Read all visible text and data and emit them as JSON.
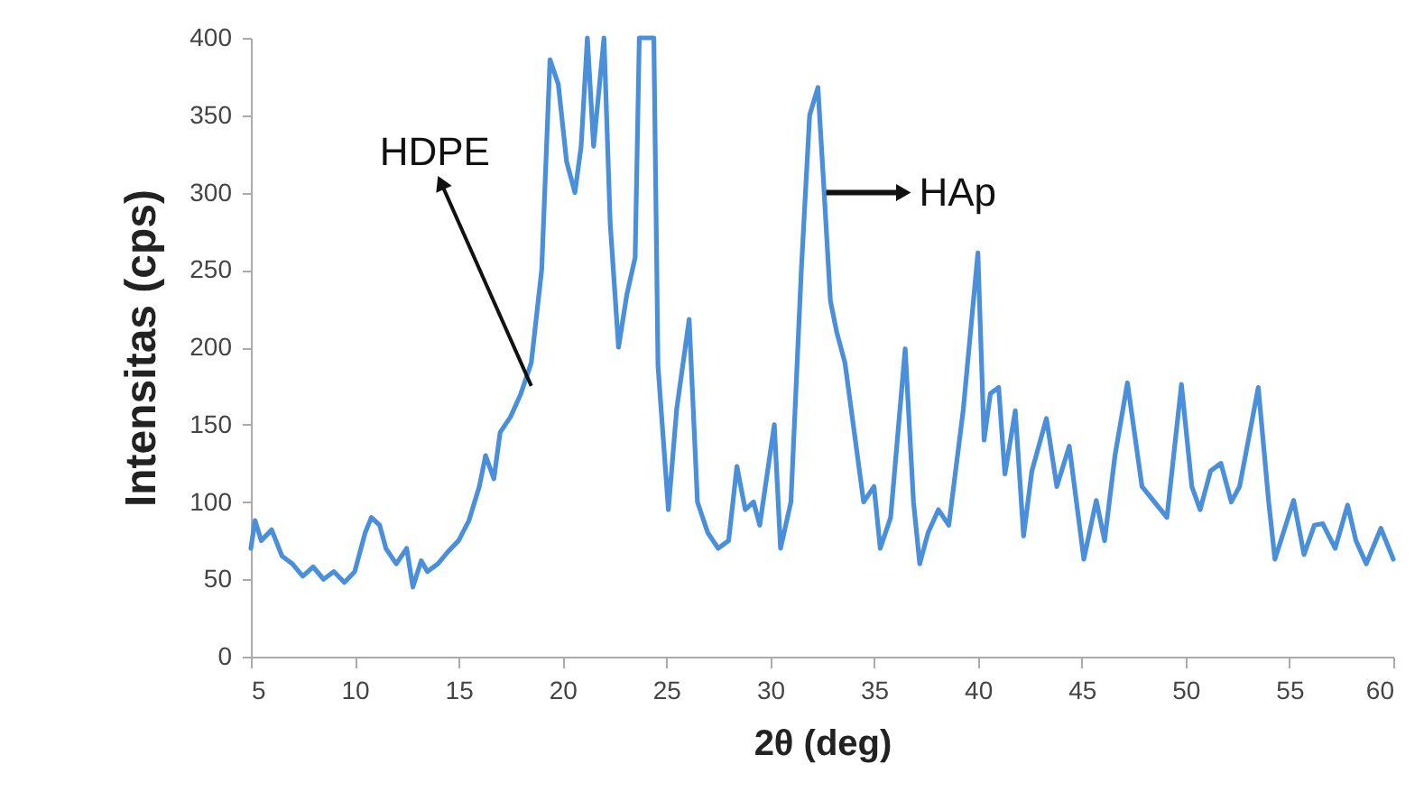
{
  "chart_data": {
    "type": "line",
    "xlabel": "2θ (deg)",
    "ylabel": "Intensitas (cps)",
    "x": [
      5,
      5.2,
      5.5,
      6,
      6.5,
      7,
      7.5,
      8,
      8.5,
      9,
      9.5,
      10,
      10.5,
      10.8,
      11.2,
      11.5,
      12,
      12.5,
      12.8,
      13.2,
      13.5,
      14,
      14.5,
      15,
      15.5,
      16,
      16.3,
      16.7,
      17,
      17.5,
      18,
      18.5,
      19,
      19.4,
      19.8,
      20.2,
      20.6,
      20.9,
      21.2,
      21.5,
      22,
      22.3,
      22.7,
      23.1,
      23.5,
      23.7,
      24.4,
      24.6,
      25.1,
      25.5,
      26.1,
      26.5,
      27,
      27.5,
      28,
      28.4,
      28.8,
      29.2,
      29.5,
      30.2,
      30.5,
      31,
      31.5,
      31.9,
      32.3,
      32.6,
      32.9,
      33.2,
      33.6,
      34,
      34.5,
      35,
      35.3,
      35.8,
      36.5,
      36.9,
      37.2,
      37.6,
      38.1,
      38.6,
      39.3,
      40,
      40.3,
      40.6,
      41,
      41.3,
      41.8,
      42.2,
      42.6,
      43.3,
      43.8,
      44.4,
      45.1,
      45.7,
      46.1,
      46.6,
      47.2,
      47.9,
      48.5,
      49.1,
      49.8,
      50.3,
      50.7,
      51.2,
      51.7,
      52.2,
      52.6,
      53.5,
      54,
      54.3,
      55.2,
      55.7,
      56.2,
      56.6,
      57.2,
      57.8,
      58.2,
      58.7,
      59.4,
      60
    ],
    "series": [
      {
        "color": "#4a8fdc",
        "values": [
          70,
          88,
          75,
          82,
          65,
          60,
          52,
          58,
          50,
          55,
          48,
          55,
          80,
          90,
          85,
          70,
          60,
          70,
          45,
          62,
          55,
          60,
          68,
          75,
          88,
          110,
          130,
          115,
          145,
          155,
          170,
          190,
          250,
          386,
          370,
          320,
          300,
          330,
          400,
          330,
          400,
          280,
          200,
          234,
          258,
          400,
          400,
          188,
          95,
          160,
          218,
          100,
          80,
          70,
          75,
          123,
          95,
          100,
          85,
          150,
          70,
          100,
          250,
          350,
          368,
          300,
          230,
          210,
          190,
          150,
          100,
          110,
          70,
          90,
          199,
          100,
          60,
          80,
          95,
          85,
          160,
          261,
          140,
          170,
          174,
          118,
          159,
          78,
          120,
          154,
          110,
          136,
          63,
          101,
          75,
          130,
          177,
          110,
          100,
          90,
          176,
          110,
          95,
          120,
          125,
          100,
          110,
          174,
          100,
          63,
          101,
          66,
          85,
          86,
          70,
          98,
          75,
          60,
          83,
          63
        ]
      }
    ],
    "xlim": [
      5,
      60
    ],
    "xticks": [
      5,
      10,
      15,
      20,
      25,
      30,
      35,
      40,
      45,
      50,
      55,
      60
    ],
    "ylim": [
      0,
      400
    ],
    "yticks": [
      0,
      50,
      100,
      150,
      200,
      250,
      300,
      350,
      400
    ],
    "grid": false,
    "marker": "none",
    "line_style": "solid",
    "annotations": [
      {
        "text": "HDPE",
        "x": 18.5,
        "y": 175
      },
      {
        "text": "HAp",
        "x": 32.7,
        "y": 300
      }
    ]
  }
}
